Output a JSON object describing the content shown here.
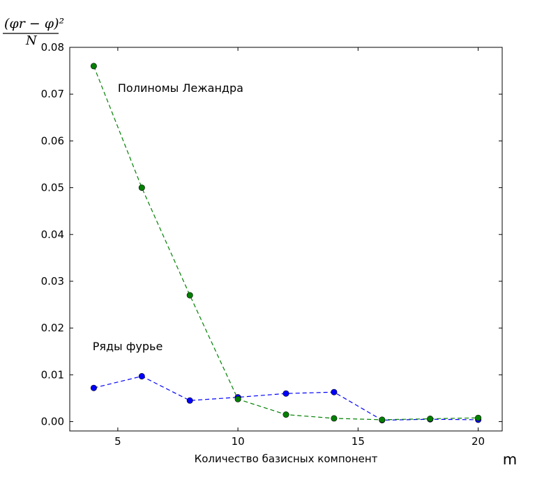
{
  "chart_data": {
    "type": "line",
    "title": "",
    "xlabel": "Количество базисных компонент",
    "x_extra_label": "m",
    "ylabel_top": "(φr − φ)²",
    "ylabel_bottom": "N",
    "xlim": [
      3,
      21
    ],
    "ylim": [
      -0.002,
      0.08
    ],
    "xticks": [
      5,
      10,
      15,
      20
    ],
    "yticks": [
      0.0,
      0.01,
      0.02,
      0.03,
      0.04,
      0.05,
      0.06,
      0.07,
      0.08
    ],
    "ytick_labels": [
      "0.00",
      "0.01",
      "0.02",
      "0.03",
      "0.04",
      "0.05",
      "0.06",
      "0.07",
      "0.08"
    ],
    "grid": false,
    "x": [
      4,
      6,
      8,
      10,
      12,
      14,
      16,
      18,
      20
    ],
    "series": [
      {
        "color": "#0000ff",
        "line_style": "dashed",
        "marker": "circle",
        "values": [
          0.0072,
          0.0097,
          0.0045,
          0.0052,
          0.006,
          0.0063,
          0.0003,
          0.0005,
          0.0004
        ]
      },
      {
        "color": "#008000",
        "line_style": "dashed",
        "marker": "circle",
        "values": [
          0.076,
          0.05,
          0.027,
          0.0048,
          0.0015,
          0.0007,
          0.0004,
          0.0006,
          0.0008
        ]
      }
    ],
    "annotations": [
      {
        "text": "Полиномы Лежандра",
        "x": 5.0,
        "y": 0.0705
      },
      {
        "text": "Ряды фурье",
        "x": 3.95,
        "y": 0.0153
      }
    ]
  }
}
